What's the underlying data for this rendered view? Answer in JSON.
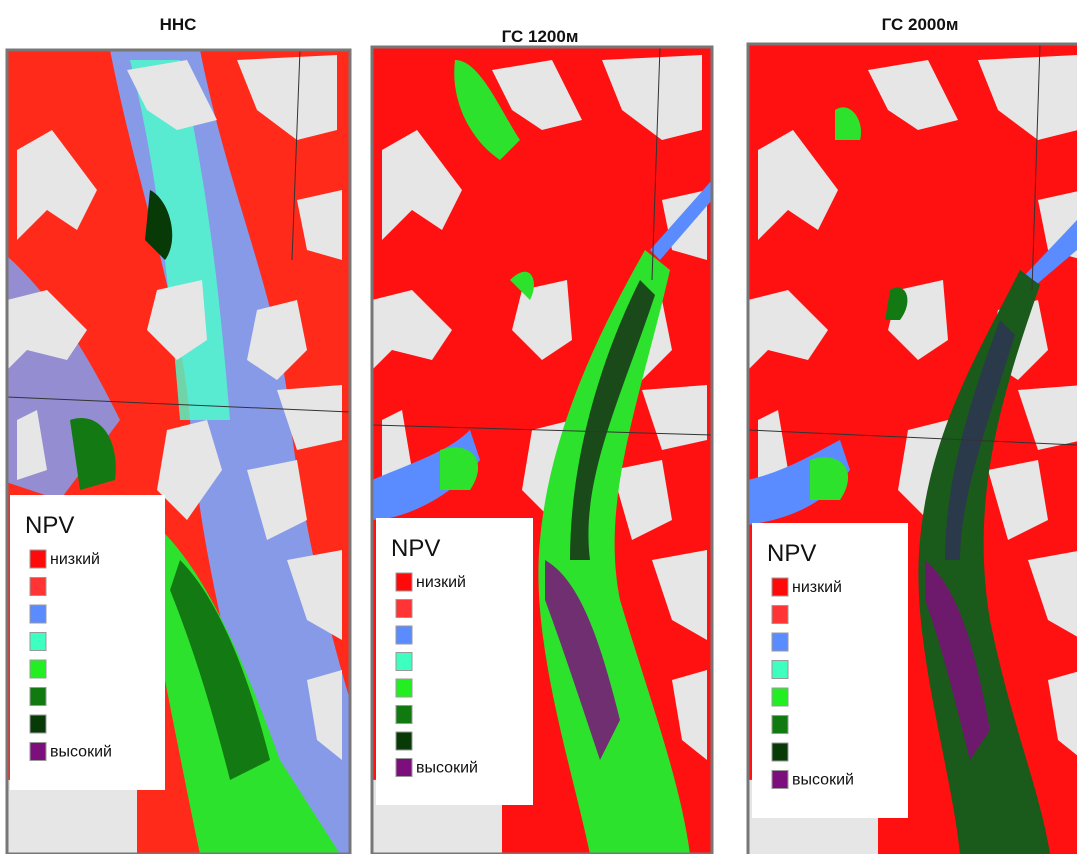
{
  "panels": [
    {
      "title": "ННС",
      "legend": {
        "title": "NPV",
        "items": [
          {
            "color": "#ff0a0a",
            "label": "низкий"
          },
          {
            "color": "#ff3535"
          },
          {
            "color": "#5b8cff"
          },
          {
            "color": "#3dffc0"
          },
          {
            "color": "#22ee22"
          },
          {
            "color": "#107a10"
          },
          {
            "color": "#073a07"
          },
          {
            "color": "#7d0f7d",
            "label": "высокий"
          }
        ]
      }
    },
    {
      "title": "ГС 1200м",
      "legend": {
        "title": "NPV",
        "items": [
          {
            "color": "#ff0a0a",
            "label": "низкий"
          },
          {
            "color": "#ff3535"
          },
          {
            "color": "#5b8cff"
          },
          {
            "color": "#3dffc0"
          },
          {
            "color": "#22ee22"
          },
          {
            "color": "#107a10"
          },
          {
            "color": "#073a07"
          },
          {
            "color": "#7d0f7d",
            "label": "высокий"
          }
        ]
      }
    },
    {
      "title": "ГС 2000м",
      "legend": {
        "title": "NPV",
        "items": [
          {
            "color": "#ff0a0a",
            "label": "низкий"
          },
          {
            "color": "#ff3535"
          },
          {
            "color": "#5b8cff"
          },
          {
            "color": "#3dffc0"
          },
          {
            "color": "#22ee22"
          },
          {
            "color": "#107a10"
          },
          {
            "color": "#073a07"
          },
          {
            "color": "#7d0f7d",
            "label": "высокий"
          }
        ]
      }
    }
  ]
}
